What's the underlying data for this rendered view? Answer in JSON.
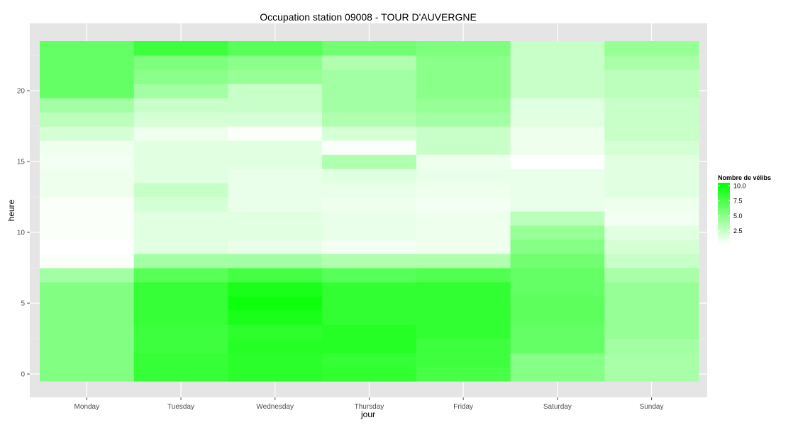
{
  "chart_data": {
    "type": "heatmap",
    "title": "Occupation station 09008 - TOUR D'AUVERGNE",
    "xlabel": "jour",
    "ylabel": "heure",
    "categories": [
      "Monday",
      "Tuesday",
      "Wednesday",
      "Thursday",
      "Friday",
      "Saturday",
      "Sunday"
    ],
    "y": [
      0,
      1,
      2,
      3,
      4,
      5,
      6,
      7,
      8,
      9,
      10,
      11,
      12,
      13,
      14,
      15,
      16,
      17,
      18,
      19,
      20,
      21,
      22,
      23
    ],
    "y_ticks": [
      0,
      5,
      10,
      15,
      20
    ],
    "ylim": [
      -0.5,
      23.5
    ],
    "grid": true,
    "legend": {
      "title": "Nombre de vélibs",
      "position": "right",
      "ticks": [
        2.5,
        5.0,
        7.5,
        10.0
      ],
      "tick_labels": [
        "2.5",
        "5.0",
        "7.5",
        "10.0"
      ],
      "range": [
        0.3,
        10.5
      ],
      "low_color": "#ffffff",
      "high_color": "#00ff00"
    },
    "values": [
      [
        5.3,
        8.3,
        8.8,
        8.6,
        7.7,
        5.2,
        3.8
      ],
      [
        5.3,
        8.3,
        8.8,
        8.4,
        8.0,
        5.2,
        3.8
      ],
      [
        5.3,
        8.0,
        9.0,
        9.0,
        8.0,
        6.5,
        4.0
      ],
      [
        5.3,
        8.0,
        8.7,
        9.0,
        8.5,
        6.5,
        4.5
      ],
      [
        5.3,
        8.3,
        9.5,
        8.5,
        8.5,
        6.8,
        4.5
      ],
      [
        5.3,
        8.3,
        10.0,
        8.5,
        8.5,
        6.8,
        4.5
      ],
      [
        5.3,
        8.3,
        9.5,
        8.5,
        8.5,
        6.5,
        4.5
      ],
      [
        4.0,
        7.0,
        7.8,
        7.0,
        7.3,
        6.5,
        3.8
      ],
      [
        0.5,
        4.0,
        4.0,
        3.5,
        3.5,
        6.0,
        2.5
      ],
      [
        0.3,
        1.5,
        1.2,
        0.8,
        1.0,
        5.2,
        2.0
      ],
      [
        0.5,
        1.5,
        1.5,
        1.2,
        1.0,
        4.5,
        1.5
      ],
      [
        0.5,
        1.5,
        1.5,
        1.2,
        1.0,
        3.0,
        0.8
      ],
      [
        0.5,
        2.0,
        1.2,
        1.0,
        0.8,
        1.2,
        1.0
      ],
      [
        1.0,
        2.5,
        1.2,
        1.2,
        1.0,
        1.2,
        1.5
      ],
      [
        1.0,
        1.5,
        1.2,
        1.5,
        1.2,
        1.2,
        1.5
      ],
      [
        0.8,
        1.5,
        1.5,
        3.5,
        1.0,
        0.3,
        1.5
      ],
      [
        1.0,
        1.5,
        1.5,
        0.5,
        2.5,
        1.0,
        2.0
      ],
      [
        2.0,
        1.0,
        0.5,
        2.0,
        2.5,
        1.0,
        2.5
      ],
      [
        3.0,
        2.0,
        2.0,
        3.5,
        4.0,
        1.5,
        2.5
      ],
      [
        4.0,
        2.5,
        2.5,
        4.0,
        4.5,
        1.5,
        2.5
      ],
      [
        6.5,
        4.0,
        2.5,
        4.0,
        5.0,
        2.5,
        3.0
      ],
      [
        6.5,
        5.0,
        4.5,
        4.0,
        5.0,
        2.5,
        3.0
      ],
      [
        6.5,
        5.5,
        5.0,
        3.5,
        5.0,
        2.5,
        3.8
      ],
      [
        6.5,
        8.0,
        7.0,
        6.0,
        5.5,
        2.5,
        4.5
      ]
    ]
  }
}
